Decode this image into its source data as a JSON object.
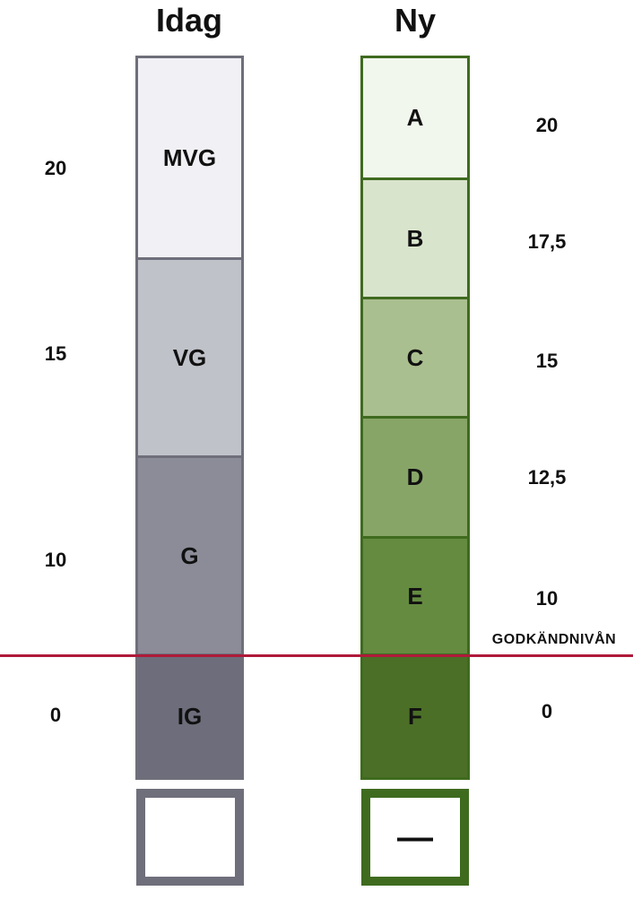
{
  "titles": {
    "old": "Idag",
    "new": "Ny"
  },
  "old_grades": [
    {
      "label": "MVG",
      "color": "#f0f0f5"
    },
    {
      "label": "VG",
      "color": "#c0c2c9"
    },
    {
      "label": "G",
      "color": "#8b8c98"
    },
    {
      "label": "IG",
      "color": "#6d6d7b"
    }
  ],
  "new_grades": [
    {
      "label": "A",
      "color": "#f1f7ec"
    },
    {
      "label": "B",
      "color": "#d8e4cc"
    },
    {
      "label": "C",
      "color": "#aabf8f"
    },
    {
      "label": "D",
      "color": "#88a568"
    },
    {
      "label": "E",
      "color": "#648b40"
    },
    {
      "label": "F",
      "color": "#4b6f27"
    }
  ],
  "old_points": [
    "20",
    "15",
    "10",
    "0"
  ],
  "new_points": [
    "20",
    "17,5",
    "15",
    "12,5",
    "10",
    "0"
  ],
  "threshold_label": "GODKÄNDNIVÅN",
  "new_empty_symbol": "—",
  "colors": {
    "old_border": "#6f6f7b",
    "new_border": "#3f6b1f",
    "threshold_line": "#b01a3a"
  }
}
